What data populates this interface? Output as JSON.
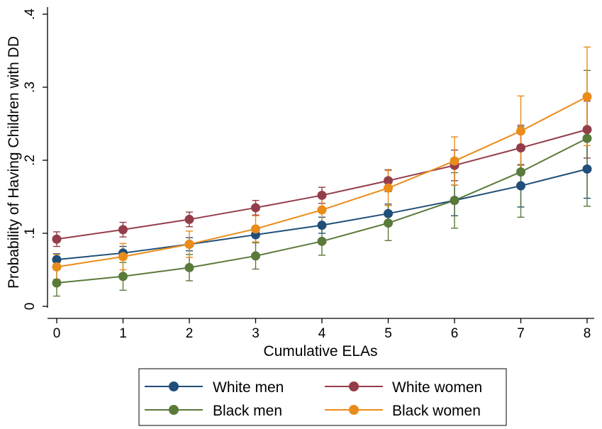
{
  "chart_data": {
    "type": "line",
    "title": "",
    "xlabel": "Cumulative ELAs",
    "ylabel": "Probability of Having Children with DD",
    "x": [
      0,
      1,
      2,
      3,
      4,
      5,
      6,
      7,
      8
    ],
    "xticks": [
      "0",
      "1",
      "2",
      "3",
      "4",
      "5",
      "6",
      "7",
      "8"
    ],
    "yticks": [
      {
        "value": 0,
        "label": "0"
      },
      {
        "value": 0.1,
        "label": ".1"
      },
      {
        "value": 0.2,
        "label": ".2"
      },
      {
        "value": 0.3,
        "label": ".3"
      },
      {
        "value": 0.4,
        "label": ".4"
      }
    ],
    "xlim": [
      -0.1,
      8.1
    ],
    "ylim": [
      0,
      0.4
    ],
    "grid": false,
    "legend_position": "bottom",
    "series": [
      {
        "name": "White men",
        "color": "#1f4e79",
        "values": [
          0.064,
          0.073,
          0.085,
          0.098,
          0.111,
          0.127,
          0.145,
          0.165,
          0.188
        ],
        "lower": [
          0.056,
          0.064,
          0.076,
          0.088,
          0.1,
          0.114,
          0.124,
          0.136,
          0.148
        ],
        "upper": [
          0.072,
          0.082,
          0.094,
          0.108,
          0.122,
          0.14,
          0.166,
          0.194,
          0.228
        ]
      },
      {
        "name": "White women",
        "color": "#943d4a",
        "values": [
          0.092,
          0.105,
          0.119,
          0.135,
          0.152,
          0.172,
          0.193,
          0.217,
          0.242
        ],
        "lower": [
          0.082,
          0.095,
          0.109,
          0.125,
          0.141,
          0.157,
          0.172,
          0.186,
          0.203
        ],
        "upper": [
          0.102,
          0.115,
          0.129,
          0.145,
          0.163,
          0.187,
          0.214,
          0.248,
          0.281
        ]
      },
      {
        "name": "Black men",
        "color": "#5a7a3a",
        "values": [
          0.032,
          0.041,
          0.053,
          0.069,
          0.089,
          0.114,
          0.145,
          0.184,
          0.23
        ],
        "lower": [
          0.014,
          0.022,
          0.035,
          0.051,
          0.07,
          0.09,
          0.107,
          0.122,
          0.137
        ],
        "upper": [
          0.05,
          0.06,
          0.071,
          0.087,
          0.108,
          0.138,
          0.183,
          0.246,
          0.323
        ]
      },
      {
        "name": "Black women",
        "color": "#ea8c1a",
        "values": [
          0.054,
          0.068,
          0.085,
          0.106,
          0.132,
          0.162,
          0.199,
          0.24,
          0.287
        ],
        "lower": [
          0.037,
          0.05,
          0.067,
          0.088,
          0.112,
          0.138,
          0.166,
          0.193,
          0.22
        ],
        "upper": [
          0.071,
          0.086,
          0.103,
          0.124,
          0.152,
          0.186,
          0.232,
          0.288,
          0.355
        ]
      }
    ]
  }
}
